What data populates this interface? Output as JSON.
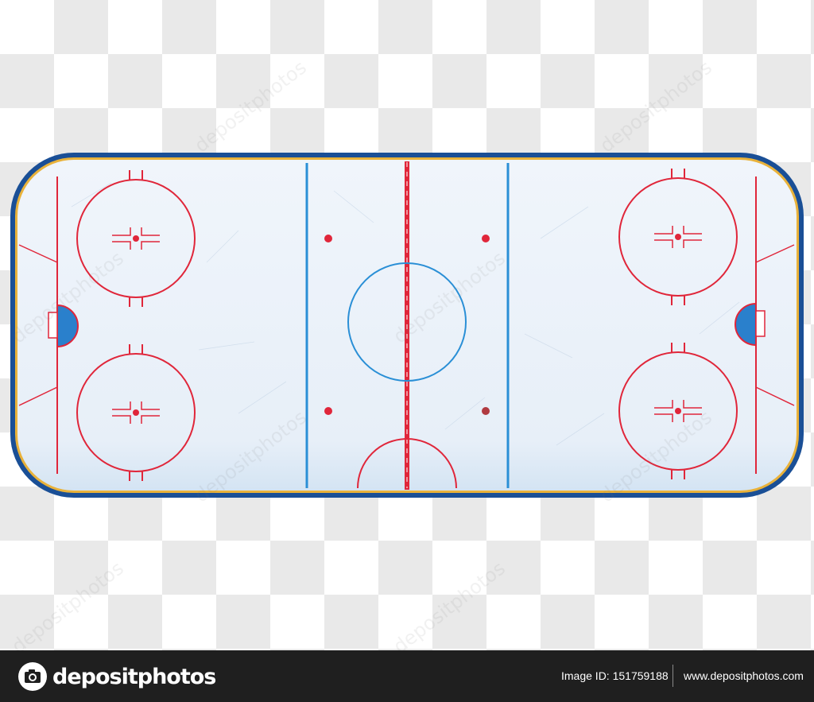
{
  "watermark": {
    "text": "depositphotos"
  },
  "footer": {
    "brand": "depositphotos",
    "image_id_label": "Image ID:",
    "image_id": "151759188",
    "site_url": "www.depositphotos.com"
  },
  "colors": {
    "ice": "#e9f1f9",
    "board_outer": "#1a4f96",
    "board_inner": "#e9b23a",
    "red_line": "#e0263a",
    "blue_line": "#2a8fd6",
    "crease": "#2a80cc",
    "footer_bg": "#1f1f1f"
  }
}
